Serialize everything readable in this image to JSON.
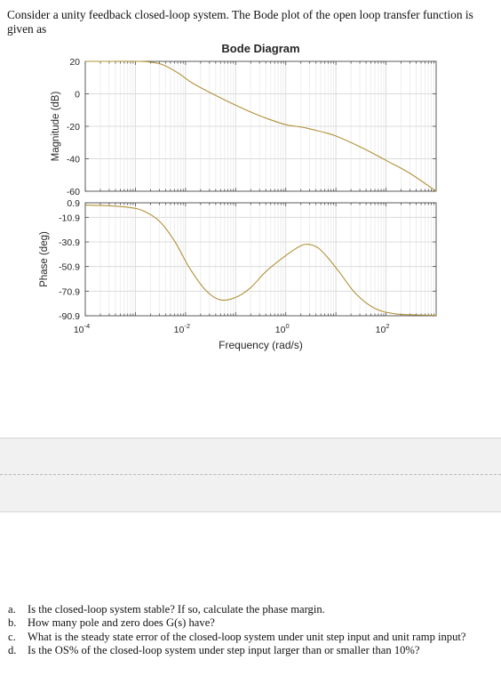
{
  "problem": {
    "intro": "Consider a unity feedback closed-loop system. The Bode plot of the open loop transfer function is given as"
  },
  "chart_data": {
    "type": "line",
    "title": "Bode Diagram",
    "xlabel": "Frequency (rad/s)",
    "x_scale": "log",
    "xlim": [
      0.0001,
      1000
    ],
    "x_ticks": [
      0.0001,
      0.01,
      1,
      100
    ],
    "x_tick_labels": [
      {
        "base": "10",
        "exp": "-4"
      },
      {
        "base": "10",
        "exp": "-2"
      },
      {
        "base": "10",
        "exp": "0"
      },
      {
        "base": "10",
        "exp": "2"
      }
    ],
    "grid": true,
    "line_color": "#b0923a",
    "panels": [
      {
        "name": "magnitude",
        "ylabel": "Magnitude (dB)",
        "ylim": [
          -60,
          20
        ],
        "y_ticks": [
          20,
          0,
          -20,
          -40,
          -60
        ],
        "y_tick_labels": [
          "20",
          "0",
          "-20",
          "-40",
          "-60"
        ],
        "x": [
          0.0001,
          0.00032,
          0.0012,
          0.002,
          0.0035,
          0.007,
          0.014,
          0.04,
          0.1,
          0.25,
          0.5,
          1,
          1.6,
          2.5,
          4,
          6.3,
          10,
          20,
          50,
          100,
          300,
          1000
        ],
        "y": [
          20,
          20,
          20,
          19.5,
          18,
          13,
          6.5,
          -1,
          -7,
          -12.5,
          -16,
          -19,
          -20,
          -21,
          -22.5,
          -24,
          -26,
          -30,
          -36,
          -41,
          -49,
          -60
        ]
      },
      {
        "name": "phase",
        "ylabel": "Phase (deg)",
        "ylim": [
          -90.9,
          0.9
        ],
        "y_ticks": [
          0.9,
          -10.9,
          -30.9,
          -50.9,
          -70.9,
          -90.9
        ],
        "y_tick_labels": [
          "0.9",
          "-10.9",
          "-30.9",
          "-50.9",
          "-70.9",
          "-90.9"
        ],
        "x": [
          0.0001,
          0.0003,
          0.0008,
          0.0015,
          0.003,
          0.006,
          0.012,
          0.025,
          0.05,
          0.1,
          0.2,
          0.4,
          1,
          2,
          3,
          4.5,
          7,
          12,
          25,
          60,
          150,
          400,
          1000
        ],
        "y": [
          -1,
          -1.5,
          -3,
          -6,
          -14,
          -30,
          -52,
          -70,
          -78,
          -76,
          -68,
          -55,
          -42,
          -34,
          -33,
          -36,
          -44,
          -56,
          -73,
          -85,
          -89.3,
          -90.2,
          -90.6
        ]
      }
    ]
  },
  "questions": [
    {
      "letter": "a.",
      "text": "Is the closed-loop system stable? If so, calculate the phase margin."
    },
    {
      "letter": "b.",
      "text": "How many pole and zero does G(s) have?"
    },
    {
      "letter": "c.",
      "text": "What is the steady state error of the closed-loop system under unit step input and unit ramp input?"
    },
    {
      "letter": "d.",
      "text": "Is the OS% of the closed-loop system under step input larger than or smaller than 10%?"
    }
  ]
}
